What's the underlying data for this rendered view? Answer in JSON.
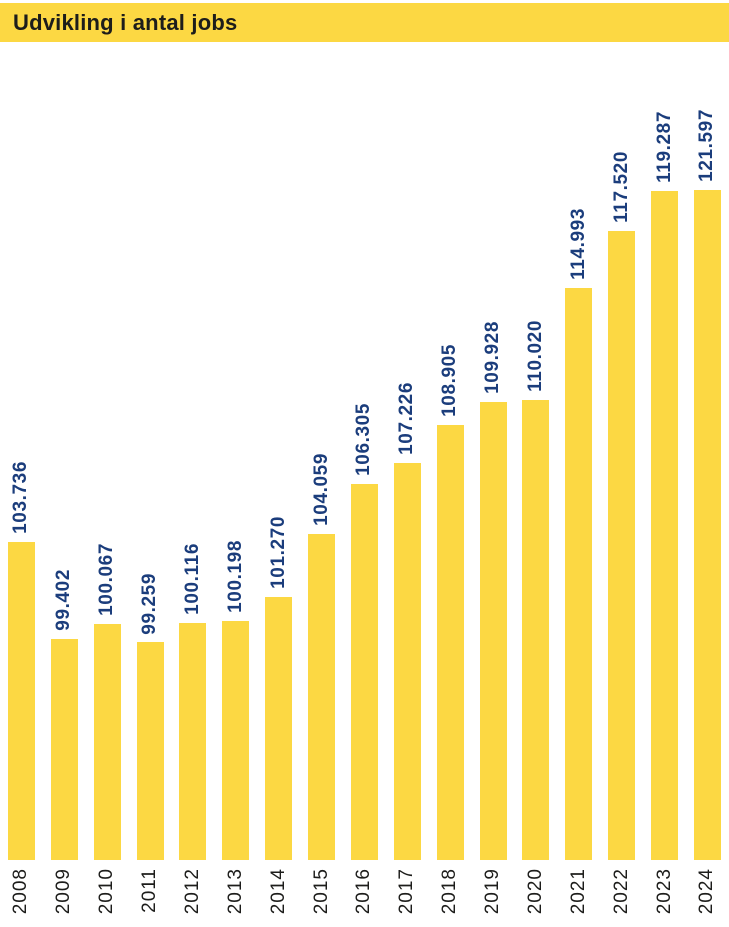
{
  "header": {
    "title": "Udvikling i antal jobs"
  },
  "colors": {
    "bar_yellow": "#FCD843",
    "value_label_navy": "#1B3D7C",
    "title_dark": "#1D1D1B",
    "year_dark": "#1D1D1B",
    "background": "#FFFFFF"
  },
  "chart_data": {
    "type": "bar",
    "title": "Udvikling i antal jobs",
    "xlabel": "",
    "ylabel": "",
    "categories": [
      "2008",
      "2009",
      "2010",
      "2011",
      "2012",
      "2013",
      "2014",
      "2015",
      "2016",
      "2017",
      "2018",
      "2019",
      "2020",
      "2021",
      "2022",
      "2023",
      "2024"
    ],
    "values": [
      103736,
      99402,
      100067,
      99259,
      100116,
      100198,
      101270,
      104059,
      106305,
      107226,
      108905,
      109928,
      110020,
      114993,
      117520,
      119287,
      121597
    ],
    "value_labels": [
      "103.736",
      "99.402",
      "100.067",
      "99.259",
      "100.116",
      "100.198",
      "101.270",
      "104.059",
      "106.305",
      "107.226",
      "108.905",
      "109.928",
      "110.020",
      "114.993",
      "117.520",
      "119.287",
      "121.597"
    ],
    "ylim": [
      89600,
      121597
    ],
    "grid": false,
    "legend": false,
    "value_labels_rotated_90": true,
    "tick_labels_rotated_90": true
  }
}
